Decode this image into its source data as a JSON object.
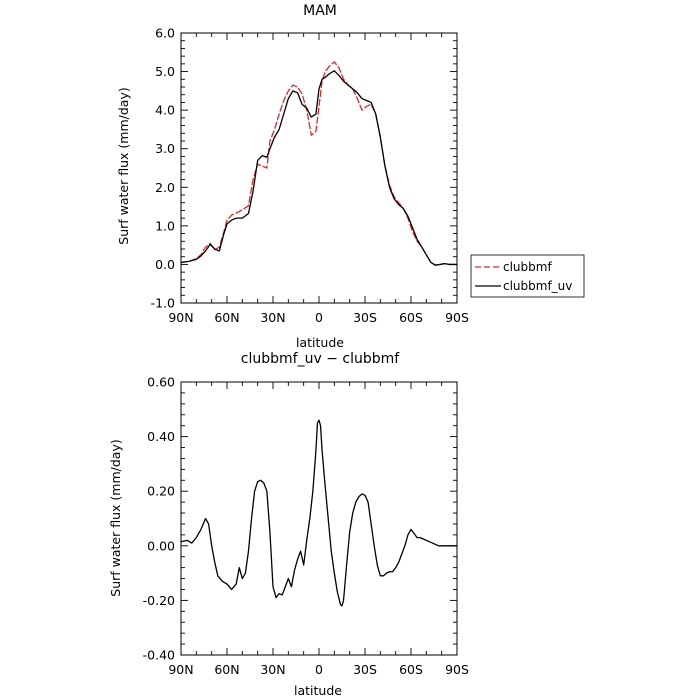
{
  "chart_data": [
    {
      "type": "line",
      "title": "MAM",
      "xlabel": "latitude",
      "ylabel": "Surf water flux (mm/day)",
      "xlim": [
        90,
        -90
      ],
      "ylim": [
        -1.0,
        6.0
      ],
      "x_ticks": [
        {
          "value": 90,
          "label": "90N"
        },
        {
          "value": 60,
          "label": "60N"
        },
        {
          "value": 30,
          "label": "30N"
        },
        {
          "value": 0,
          "label": "0"
        },
        {
          "value": -30,
          "label": "30S"
        },
        {
          "value": -60,
          "label": "60S"
        },
        {
          "value": -90,
          "label": "90S"
        }
      ],
      "y_ticks": [
        {
          "value": -1.0,
          "label": "-1.0"
        },
        {
          "value": 0.0,
          "label": "0.0"
        },
        {
          "value": 1.0,
          "label": "1.0"
        },
        {
          "value": 2.0,
          "label": "2.0"
        },
        {
          "value": 3.0,
          "label": "3.0"
        },
        {
          "value": 4.0,
          "label": "4.0"
        },
        {
          "value": 5.0,
          "label": "5.0"
        },
        {
          "value": 6.0,
          "label": "6.0"
        }
      ],
      "legend": {
        "position": "right"
      },
      "series": [
        {
          "name": "clubbmf",
          "color": "#e8231e",
          "dash": "dashed",
          "x": [
            90,
            85,
            80,
            77,
            74,
            71,
            68,
            65,
            62,
            60,
            57,
            54,
            50,
            46,
            43,
            40,
            37,
            34,
            32,
            29,
            26,
            23,
            20,
            17,
            14,
            11,
            8,
            5,
            2,
            0,
            -2,
            -4,
            -7,
            -10,
            -13,
            -16,
            -19,
            -22,
            -25,
            -28,
            -31,
            -34,
            -37,
            -40,
            -43,
            -46,
            -49,
            -52,
            -55,
            -58,
            -61,
            -64,
            -67,
            -70,
            -73,
            -76,
            -79,
            -82,
            -85,
            -90
          ],
          "y": [
            0.05,
            0.08,
            0.15,
            0.25,
            0.45,
            0.55,
            0.38,
            0.45,
            0.85,
            1.15,
            1.28,
            1.33,
            1.42,
            1.52,
            2.2,
            2.6,
            2.55,
            2.5,
            3.2,
            3.5,
            3.9,
            4.25,
            4.5,
            4.65,
            4.6,
            4.42,
            4.0,
            3.35,
            3.45,
            4.1,
            4.75,
            5.0,
            5.15,
            5.25,
            5.1,
            4.8,
            4.65,
            4.55,
            4.3,
            4.0,
            4.1,
            4.15,
            3.9,
            3.3,
            2.55,
            2.05,
            1.75,
            1.6,
            1.45,
            1.2,
            0.85,
            0.6,
            0.45,
            0.25,
            0.05,
            -0.02,
            0.0,
            0.02,
            0.0,
            0.0
          ]
        },
        {
          "name": "clubbmf_uv",
          "color": "#000000",
          "dash": "solid",
          "x": [
            90,
            85,
            80,
            77,
            74,
            71,
            68,
            65,
            62,
            60,
            57,
            54,
            50,
            46,
            43,
            40,
            37,
            34,
            32,
            29,
            26,
            23,
            20,
            17,
            14,
            11,
            8,
            5,
            2,
            0,
            -2,
            -4,
            -7,
            -10,
            -13,
            -16,
            -19,
            -22,
            -25,
            -28,
            -31,
            -34,
            -37,
            -40,
            -43,
            -46,
            -49,
            -52,
            -55,
            -58,
            -61,
            -64,
            -67,
            -70,
            -73,
            -76,
            -79,
            -82,
            -85,
            -90
          ],
          "y": [
            0.05,
            0.08,
            0.13,
            0.22,
            0.35,
            0.52,
            0.4,
            0.35,
            0.8,
            1.05,
            1.15,
            1.2,
            1.2,
            1.32,
            1.9,
            2.7,
            2.82,
            2.78,
            3.0,
            3.3,
            3.5,
            3.9,
            4.3,
            4.5,
            4.45,
            4.15,
            4.05,
            3.82,
            3.9,
            4.55,
            4.8,
            4.85,
            4.95,
            5.02,
            4.9,
            4.75,
            4.65,
            4.55,
            4.45,
            4.3,
            4.25,
            4.2,
            3.9,
            3.3,
            2.55,
            2.0,
            1.7,
            1.55,
            1.45,
            1.25,
            0.95,
            0.65,
            0.45,
            0.25,
            0.05,
            -0.02,
            0.0,
            0.02,
            0.0,
            0.0
          ]
        }
      ]
    },
    {
      "type": "line",
      "title": "clubbmf_uv − clubbmf",
      "xlabel": "latitude",
      "ylabel": "Surf water flux (mm/day)",
      "xlim": [
        90,
        -90
      ],
      "ylim": [
        -0.4,
        0.6
      ],
      "x_ticks": [
        {
          "value": 90,
          "label": "90N"
        },
        {
          "value": 60,
          "label": "60N"
        },
        {
          "value": 30,
          "label": "30N"
        },
        {
          "value": 0,
          "label": "0"
        },
        {
          "value": -30,
          "label": "30S"
        },
        {
          "value": -60,
          "label": "60S"
        },
        {
          "value": -90,
          "label": "90S"
        }
      ],
      "y_ticks": [
        {
          "value": -0.4,
          "label": "-0.40"
        },
        {
          "value": -0.2,
          "label": "-0.20"
        },
        {
          "value": 0.0,
          "label": "0.00"
        },
        {
          "value": 0.2,
          "label": "0.20"
        },
        {
          "value": 0.4,
          "label": "0.40"
        },
        {
          "value": 0.6,
          "label": "0.60"
        }
      ],
      "series": [
        {
          "color": "#000000",
          "dash": "solid",
          "x": [
            90,
            86,
            83,
            80,
            77,
            74,
            72,
            70,
            68,
            66,
            63,
            60,
            57,
            54,
            52,
            50,
            48,
            46,
            44,
            42,
            40,
            38,
            36,
            34,
            32,
            30,
            28,
            26,
            24,
            22,
            20,
            18,
            16,
            14,
            12,
            10,
            8,
            6,
            4,
            2,
            1,
            0,
            -1,
            -2,
            -4,
            -6,
            -8,
            -10,
            -12,
            -14,
            -15,
            -16,
            -18,
            -20,
            -22,
            -24,
            -26,
            -28,
            -30,
            -32,
            -34,
            -36,
            -38,
            -40,
            -42,
            -44,
            -46,
            -48,
            -50,
            -52,
            -54,
            -56,
            -58,
            -60,
            -62,
            -64,
            -66,
            -68,
            -70,
            -72,
            -74,
            -76,
            -78,
            -80,
            -82,
            -84,
            -86,
            -88,
            -90
          ],
          "y": [
            0.015,
            0.02,
            0.01,
            0.03,
            0.06,
            0.1,
            0.08,
            0.0,
            -0.06,
            -0.11,
            -0.13,
            -0.14,
            -0.16,
            -0.14,
            -0.08,
            -0.12,
            -0.1,
            -0.02,
            0.1,
            0.2,
            0.235,
            0.24,
            0.23,
            0.2,
            0.05,
            -0.15,
            -0.19,
            -0.175,
            -0.18,
            -0.15,
            -0.12,
            -0.15,
            -0.09,
            -0.05,
            -0.02,
            -0.07,
            0.02,
            0.1,
            0.2,
            0.35,
            0.45,
            0.46,
            0.44,
            0.35,
            0.22,
            0.1,
            -0.02,
            -0.1,
            -0.17,
            -0.215,
            -0.22,
            -0.2,
            -0.07,
            0.05,
            0.12,
            0.16,
            0.18,
            0.19,
            0.185,
            0.16,
            0.08,
            0.0,
            -0.07,
            -0.11,
            -0.11,
            -0.1,
            -0.095,
            -0.095,
            -0.08,
            -0.06,
            -0.03,
            0.0,
            0.04,
            0.06,
            0.045,
            0.03,
            0.03,
            0.025,
            0.02,
            0.015,
            0.01,
            0.005,
            0.0,
            0.0,
            0.0,
            0.0,
            0.0,
            0.0,
            0.0
          ]
        }
      ]
    }
  ]
}
